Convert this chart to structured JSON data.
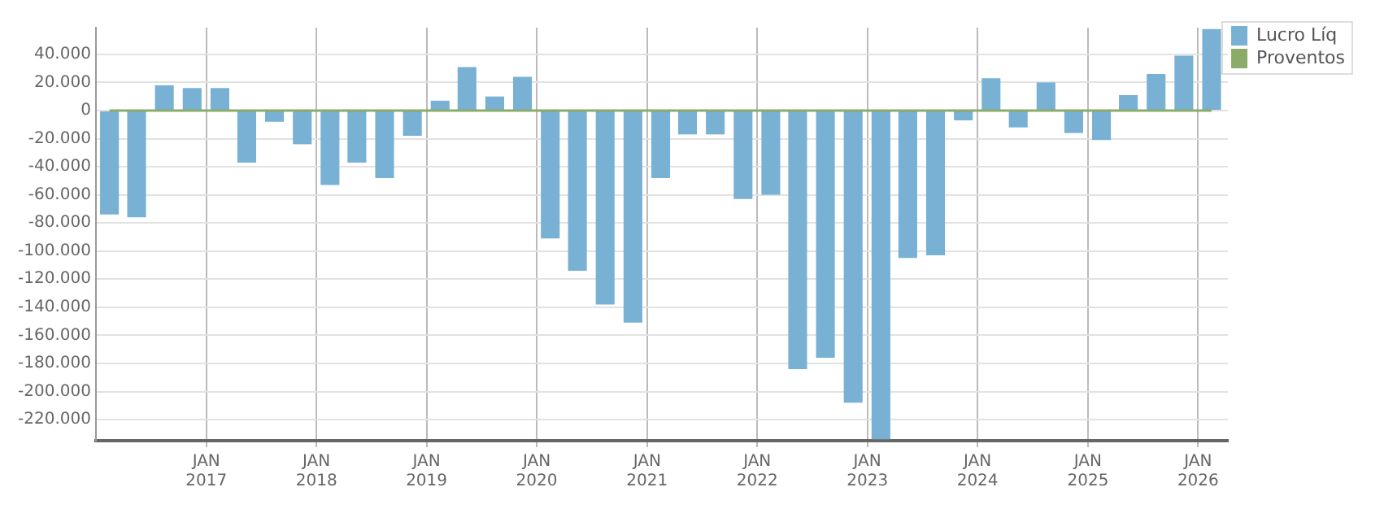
{
  "chart_data": {
    "type": "bar",
    "x": [
      "2016-02-15",
      "2016-05-15",
      "2016-08-15",
      "2016-11-15",
      "2017-02-15",
      "2017-05-15",
      "2017-08-15",
      "2017-11-15",
      "2018-02-15",
      "2018-05-15",
      "2018-08-15",
      "2018-11-15",
      "2019-02-15",
      "2019-05-15",
      "2019-08-15",
      "2019-11-15",
      "2020-02-15",
      "2020-05-15",
      "2020-08-15",
      "2020-11-15",
      "2021-02-15",
      "2021-05-15",
      "2021-08-15",
      "2021-11-15",
      "2022-02-15",
      "2022-05-15",
      "2022-08-15",
      "2022-11-15",
      "2023-02-15",
      "2023-05-15",
      "2023-08-15",
      "2023-11-15",
      "2024-02-15",
      "2024-05-15",
      "2024-08-15",
      "2024-11-15",
      "2025-02-15",
      "2025-05-15",
      "2025-08-15",
      "2025-11-15",
      "2026-02-15"
    ],
    "series": [
      {
        "name": "Lucro Líq",
        "color": "#78b1d3",
        "values": [
          -74000,
          -76000,
          18000,
          16000,
          16000,
          -37000,
          -8000,
          -24000,
          -53000,
          -37000,
          -48000,
          -18000,
          7000,
          31000,
          10000,
          24000,
          -91000,
          -114000,
          -138000,
          -151000,
          -48000,
          -17000,
          -17000,
          -63000,
          -60000,
          -184000,
          -176000,
          -208000,
          -234000,
          -105000,
          -103000,
          -7000,
          23000,
          -12000,
          20000,
          -16000,
          -21000,
          11000,
          26000,
          39000,
          58000
        ]
      },
      {
        "name": "Proventos",
        "color": "#8aac68",
        "type": "line",
        "values": [
          0,
          0,
          0,
          0,
          0,
          0,
          0,
          0,
          0,
          0,
          0,
          0,
          0,
          0,
          0,
          0,
          0,
          0,
          0,
          0,
          0,
          0,
          0,
          0,
          0,
          0,
          0,
          0,
          0,
          0,
          0,
          0,
          0,
          0,
          0,
          0,
          0,
          0,
          0,
          0,
          0
        ]
      }
    ],
    "xlim": [
      "2016-01",
      "2026-04-10"
    ],
    "xticks": [
      {
        "value": "2017-01",
        "label": "JAN 2017"
      },
      {
        "value": "2018-01",
        "label": "JAN 2018"
      },
      {
        "value": "2019-01",
        "label": "JAN 2019"
      },
      {
        "value": "2020-01",
        "label": "JAN 2020"
      },
      {
        "value": "2021-01",
        "label": "JAN 2021"
      },
      {
        "value": "2022-01",
        "label": "JAN 2022"
      },
      {
        "value": "2023-01",
        "label": "JAN 2023"
      },
      {
        "value": "2024-01",
        "label": "JAN 2024"
      },
      {
        "value": "2025-01",
        "label": "JAN 2025"
      },
      {
        "value": "2026-01",
        "label": "JAN 2026"
      }
    ],
    "ylim": [
      -235000,
      59000
    ],
    "yticks": [
      {
        "value": -220000,
        "label": "-220.000"
      },
      {
        "value": -200000,
        "label": "-200.000"
      },
      {
        "value": -180000,
        "label": "-180.000"
      },
      {
        "value": -160000,
        "label": "-160.000"
      },
      {
        "value": -140000,
        "label": "-140.000"
      },
      {
        "value": -120000,
        "label": "-120.000"
      },
      {
        "value": -100000,
        "label": "-100.000"
      },
      {
        "value": -80000,
        "label": "-80.000"
      },
      {
        "value": -60000,
        "label": "-60.000"
      },
      {
        "value": -40000,
        "label": "-40.000"
      },
      {
        "value": -20000,
        "label": "-20.000"
      },
      0,
      {
        "value": 20000,
        "label": "20.000"
      },
      {
        "value": 40000,
        "label": "40.000"
      }
    ],
    "grid": true,
    "legend": "top right",
    "marker": "none"
  }
}
